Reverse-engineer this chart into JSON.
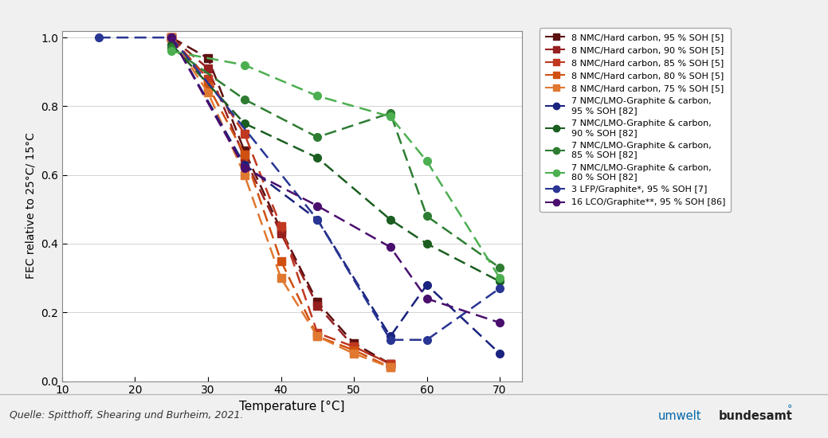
{
  "series": [
    {
      "label": "8 NMC/Hard carbon, 95 % SOH [5]",
      "color": "#5c1010",
      "marker": "s",
      "markersize": 6,
      "x": [
        25,
        30,
        35,
        40,
        45,
        50,
        55
      ],
      "y": [
        1.0,
        0.94,
        0.67,
        0.44,
        0.23,
        0.11,
        0.05
      ]
    },
    {
      "label": "8 NMC/Hard carbon, 90 % SOH [5]",
      "color": "#962020",
      "marker": "s",
      "markersize": 6,
      "x": [
        25,
        30,
        35,
        40,
        45,
        50,
        55
      ],
      "y": [
        1.0,
        0.91,
        0.65,
        0.43,
        0.22,
        0.1,
        0.05
      ]
    },
    {
      "label": "8 NMC/Hard carbon, 85 % SOH [5]",
      "color": "#c03820",
      "marker": "s",
      "markersize": 6,
      "x": [
        25,
        30,
        35,
        40,
        45,
        50,
        55
      ],
      "y": [
        1.0,
        0.88,
        0.72,
        0.45,
        0.14,
        0.1,
        0.05
      ]
    },
    {
      "label": "8 NMC/Hard carbon, 80 % SOH [5]",
      "color": "#d05010",
      "marker": "s",
      "markersize": 6,
      "x": [
        25,
        30,
        35,
        40,
        45,
        50,
        55
      ],
      "y": [
        1.0,
        0.86,
        0.66,
        0.35,
        0.13,
        0.09,
        0.04
      ]
    },
    {
      "label": "8 NMC/Hard carbon, 75 % SOH [5]",
      "color": "#e07830",
      "marker": "s",
      "markersize": 6,
      "x": [
        25,
        30,
        35,
        40,
        45,
        50,
        55
      ],
      "y": [
        1.0,
        0.84,
        0.6,
        0.3,
        0.13,
        0.08,
        0.04
      ]
    },
    {
      "label": "7 NMC/LMO-Graphite & carbon,\n95 % SOH [82]",
      "color": "#1a237e",
      "marker": "o",
      "markersize": 8,
      "x": [
        15,
        25,
        35,
        45,
        55,
        60,
        70
      ],
      "y": [
        1.0,
        1.0,
        0.63,
        0.47,
        0.13,
        0.28,
        0.08
      ]
    },
    {
      "label": "7 NMC/LMO-Graphite & carbon,\n90 % SOH [82]",
      "color": "#1b5e20",
      "marker": "o",
      "markersize": 8,
      "x": [
        25,
        35,
        45,
        55,
        60,
        70
      ],
      "y": [
        0.98,
        0.75,
        0.65,
        0.47,
        0.4,
        0.29
      ]
    },
    {
      "label": "7 NMC/LMO-Graphite & carbon,\n85 % SOH [82]",
      "color": "#388e3c",
      "marker": "o",
      "markersize": 8,
      "x": [
        25,
        35,
        45,
        55,
        60,
        70
      ],
      "y": [
        0.97,
        0.82,
        0.71,
        0.78,
        0.48,
        0.33
      ]
    },
    {
      "label": "7 NMC/LMO-Graphite & carbon,\n80 % SOH [82]",
      "color": "#4caf50",
      "marker": "o",
      "markersize": 8,
      "x": [
        25,
        35,
        45,
        55,
        60,
        70
      ],
      "y": [
        0.96,
        0.92,
        0.83,
        0.77,
        0.64,
        0.3
      ]
    },
    {
      "label": "3 LFP/Graphite*, 95 % SOH [7]",
      "color": "#283593",
      "marker": "o",
      "markersize": 8,
      "x": [
        15,
        25,
        35,
        45,
        55,
        60,
        70
      ],
      "y": [
        1.0,
        1.0,
        0.63,
        0.47,
        0.13,
        0.28,
        0.08
      ]
    },
    {
      "label": "16 LCO/Graphite**, 95 % SOH [86]",
      "color": "#4a0e6e",
      "marker": "o",
      "markersize": 8,
      "x": [
        25,
        35,
        45,
        55,
        60,
        70
      ],
      "y": [
        1.0,
        0.62,
        0.51,
        0.39,
        0.24,
        0.17
      ]
    }
  ],
  "xlabel": "Temperature [°C]",
  "ylabel": "FEC relative to 25°C/ 15°C",
  "xlim": [
    10,
    73
  ],
  "ylim": [
    0,
    1.02
  ],
  "xticks": [
    10,
    20,
    30,
    40,
    50,
    60,
    70
  ],
  "yticks": [
    0,
    0.2,
    0.4,
    0.6,
    0.8,
    1.0
  ],
  "source_text": "Quelle: Spitthoff, Shearing und Burheim, 2021.",
  "bg_color": "#f0f0f0",
  "plot_bg": "#ffffff",
  "footer_bg": "#e8e8e8",
  "border_color": "#aaaaaa"
}
